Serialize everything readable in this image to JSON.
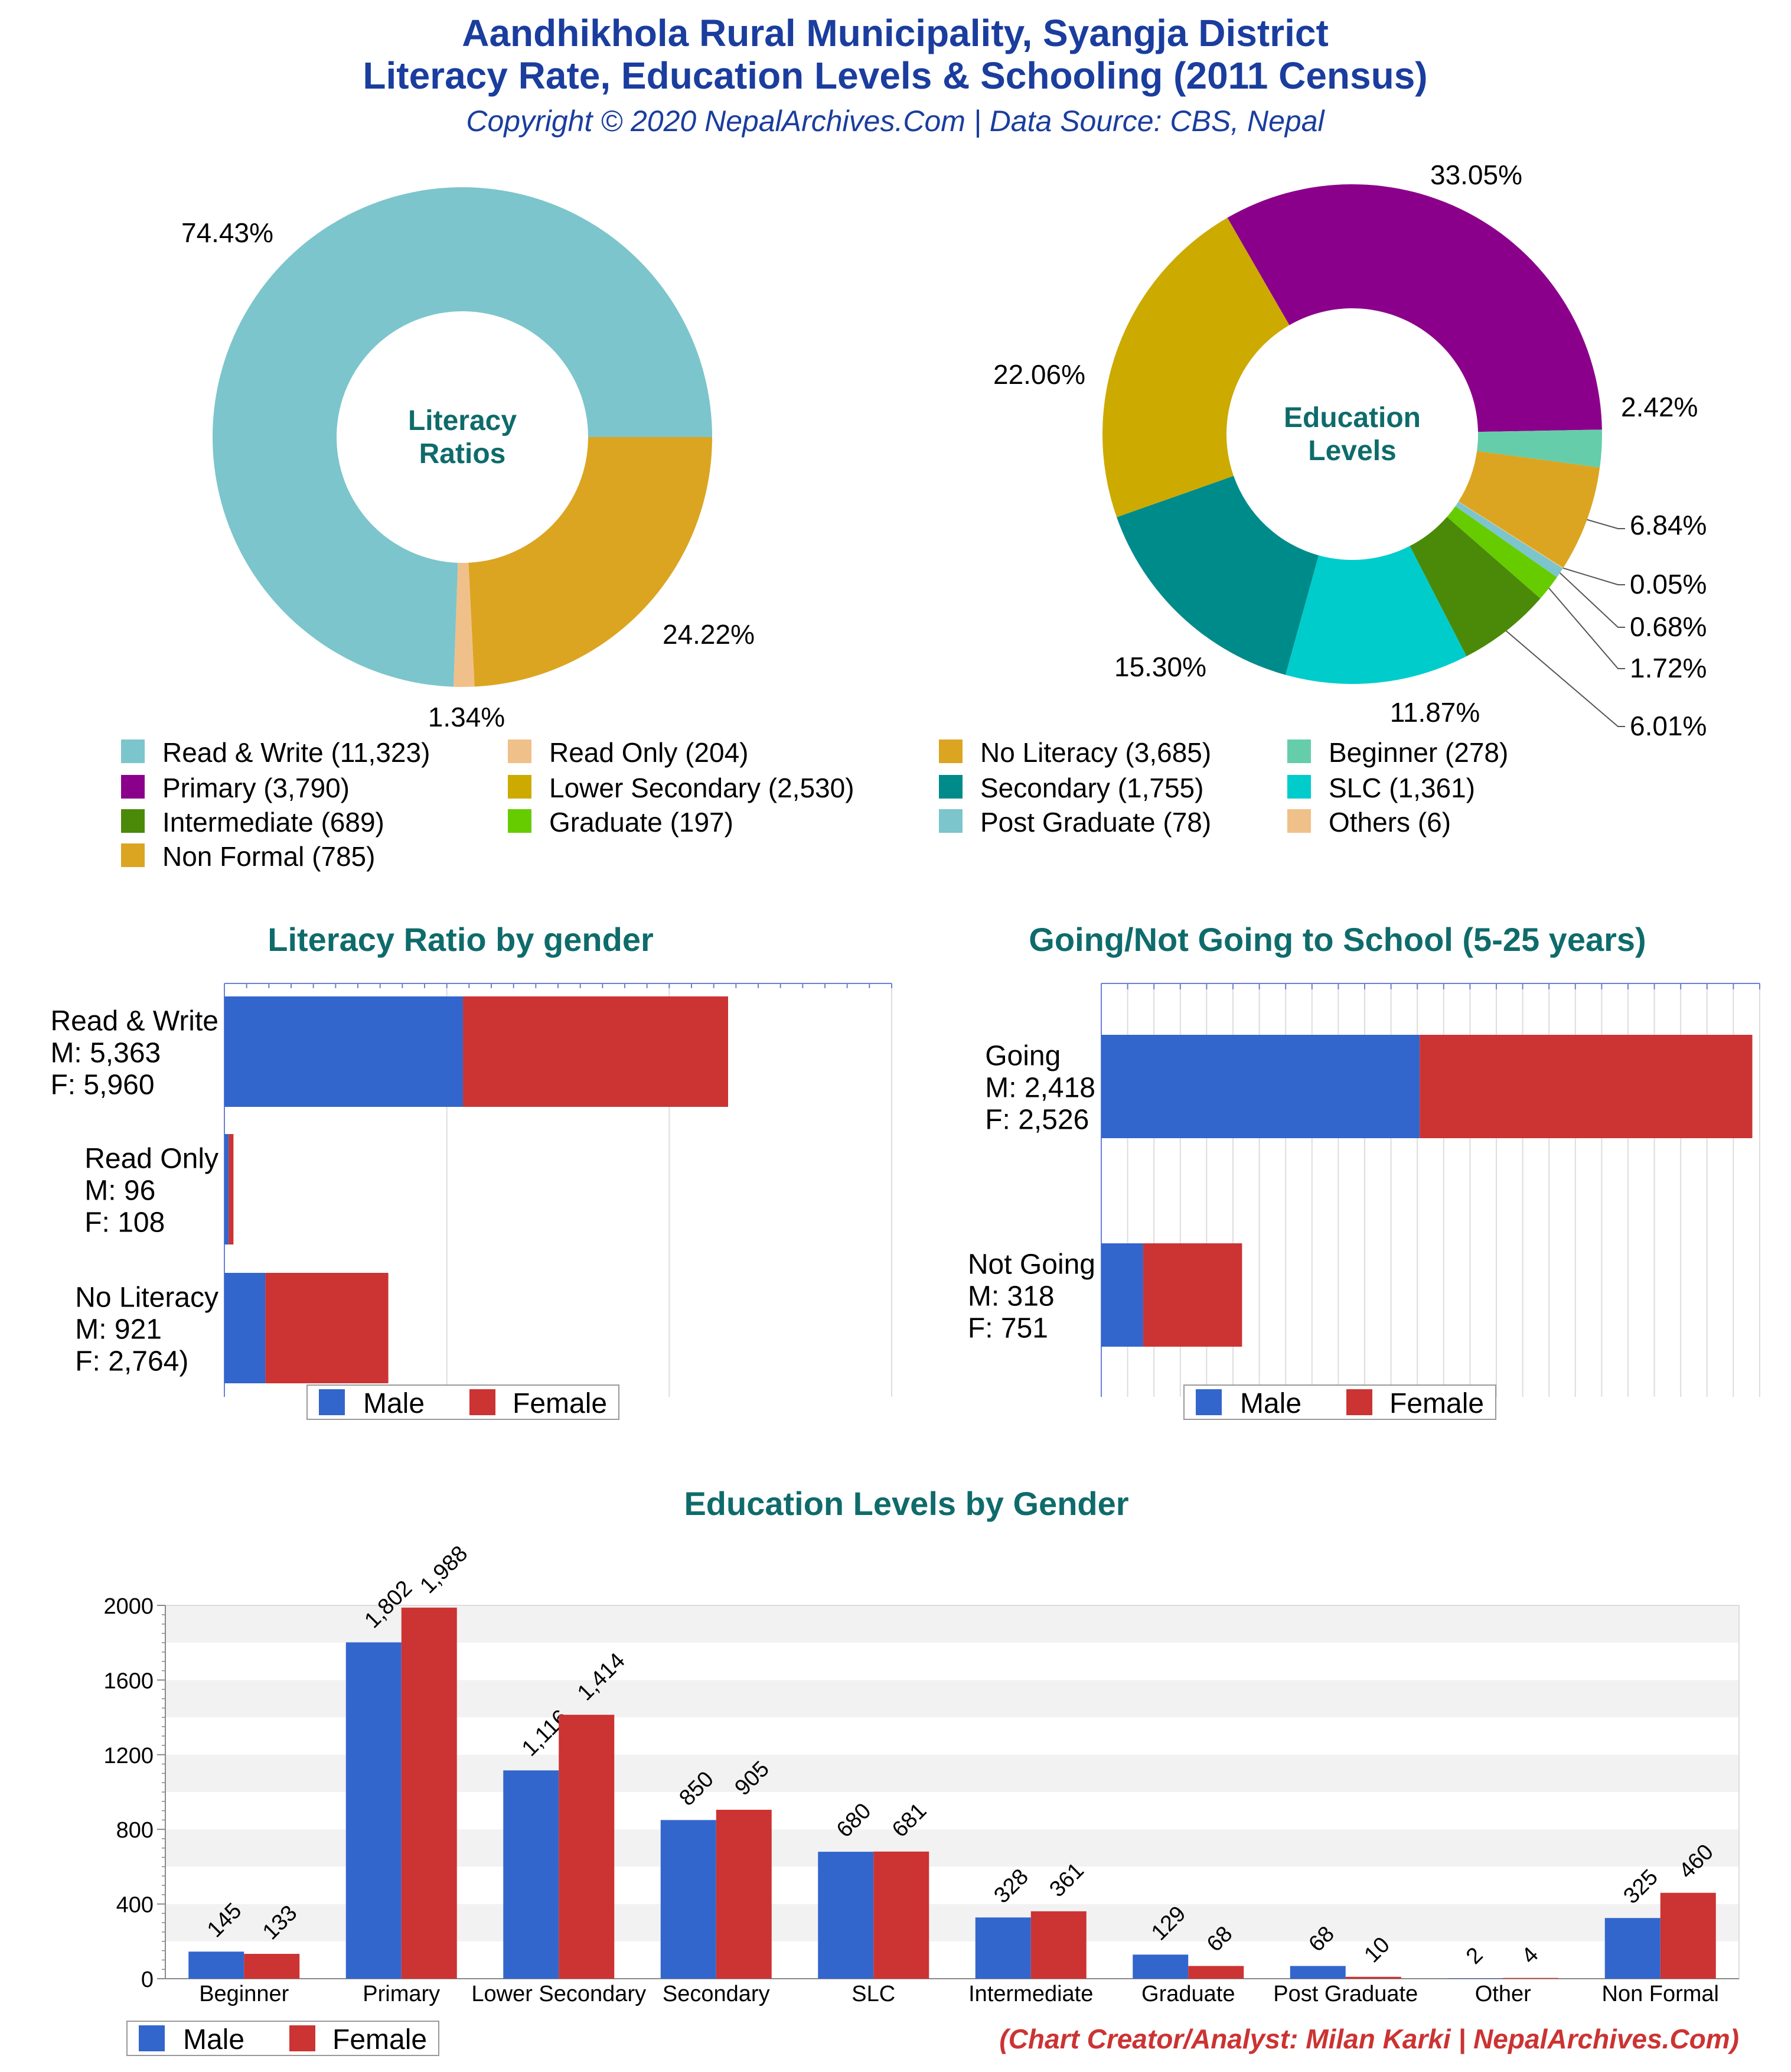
{
  "header": {
    "title_line1": "Aandhikhola Rural Municipality, Syangja District",
    "title_line2": "Literacy Rate, Education Levels & Schooling (2011 Census)",
    "subtitle": "Copyright © 2020 NepalArchives.Com | Data Source: CBS, Nepal"
  },
  "colors": {
    "title": "#1a3d9e",
    "teal_heading": "#0f6b6b",
    "male": "#3366cc",
    "female": "#cc3333",
    "credit": "#cc3333"
  },
  "chart_data": [
    {
      "id": "literacy_donut",
      "type": "pie",
      "center_label": [
        "Literacy",
        "Ratios"
      ],
      "slices": [
        {
          "name": "Read & Write",
          "value": 11323,
          "label": "74.43%",
          "color": "#7cc5cc"
        },
        {
          "name": "Read Only",
          "value": 204,
          "label": "1.34%",
          "color": "#f0c08a"
        },
        {
          "name": "No Literacy",
          "value": 3685,
          "label": "24.22%",
          "color": "#dba521"
        }
      ]
    },
    {
      "id": "education_donut",
      "type": "pie",
      "center_label": [
        "Education",
        "Levels"
      ],
      "slices": [
        {
          "name": "Primary",
          "value": 3790,
          "label": "33.05%",
          "color": "#8b008b"
        },
        {
          "name": "Beginner",
          "value": 278,
          "label": "2.42%",
          "color": "#66cdaa"
        },
        {
          "name": "Non Formal",
          "value": 785,
          "label": "6.84%",
          "color": "#dba521"
        },
        {
          "name": "Others",
          "value": 6,
          "label": "0.05%",
          "color": "#f0c08a"
        },
        {
          "name": "Post Graduate",
          "value": 78,
          "label": "0.68%",
          "color": "#7cc5cc"
        },
        {
          "name": "Graduate",
          "value": 197,
          "label": "1.72%",
          "color": "#66cc00"
        },
        {
          "name": "Intermediate",
          "value": 689,
          "label": "6.01%",
          "color": "#4a8a08"
        },
        {
          "name": "SLC",
          "value": 1361,
          "label": "11.87%",
          "color": "#00cccc"
        },
        {
          "name": "Secondary",
          "value": 1755,
          "label": "15.30%",
          "color": "#008b8b"
        },
        {
          "name": "Lower Secondary",
          "value": 2530,
          "label": "22.06%",
          "color": "#ccaa00"
        }
      ]
    },
    {
      "id": "literacy_gender",
      "type": "bar",
      "title": "Literacy Ratio by gender",
      "orientation": "horizontal-stacked",
      "categories": [
        {
          "label": "Read & Write",
          "m_text": "M: 5,363",
          "f_text": "F: 5,960",
          "male": 5363,
          "female": 5960
        },
        {
          "label": "Read Only",
          "m_text": "M: 96",
          "f_text": "F: 108",
          "male": 96,
          "female": 108
        },
        {
          "label": "No Literacy",
          "m_text": "M: 921",
          "f_text": "F: 2,764)",
          "male": 921,
          "female": 2764
        }
      ],
      "xlim": [
        0,
        15000
      ],
      "legend": [
        "Male",
        "Female"
      ]
    },
    {
      "id": "school_gender",
      "type": "bar",
      "title": "Going/Not Going to School (5-25 years)",
      "orientation": "horizontal-stacked",
      "categories": [
        {
          "label": "Going",
          "m_text": "M: 2,418",
          "f_text": "F: 2,526",
          "male": 2418,
          "female": 2526
        },
        {
          "label": "Not Going",
          "m_text": "M: 318",
          "f_text": "F: 751",
          "male": 318,
          "female": 751
        }
      ],
      "xlim": [
        0,
        5000
      ],
      "legend": [
        "Male",
        "Female"
      ]
    },
    {
      "id": "education_gender",
      "type": "bar",
      "title": "Education Levels by Gender",
      "categories": [
        "Beginner",
        "Primary",
        "Lower Secondary",
        "Secondary",
        "SLC",
        "Intermediate",
        "Graduate",
        "Post Graduate",
        "Other",
        "Non Formal"
      ],
      "series": [
        {
          "name": "Male",
          "values": [
            145,
            1802,
            1116,
            850,
            680,
            328,
            129,
            68,
            2,
            325
          ],
          "labels": [
            "145",
            "1,802",
            "1,116",
            "850",
            "680",
            "328",
            "129",
            "68",
            "2",
            "325"
          ]
        },
        {
          "name": "Female",
          "values": [
            133,
            1988,
            1414,
            905,
            681,
            361,
            68,
            10,
            4,
            460
          ],
          "labels": [
            "133",
            "1,988",
            "1,414",
            "905",
            "681",
            "361",
            "68",
            "10",
            "4",
            "460"
          ]
        }
      ],
      "yticks": [
        "0",
        "400",
        "800",
        "1200",
        "1600",
        "2000"
      ],
      "ylim": [
        0,
        2000
      ],
      "legend": [
        "Male",
        "Female"
      ]
    }
  ],
  "legend_grid": [
    {
      "label": "Read & Write (11,323)",
      "color": "#7cc5cc"
    },
    {
      "label": "Read Only (204)",
      "color": "#f0c08a"
    },
    {
      "label": "No Literacy (3,685)",
      "color": "#dba521"
    },
    {
      "label": "Beginner (278)",
      "color": "#66cdaa"
    },
    {
      "label": "Primary (3,790)",
      "color": "#8b008b"
    },
    {
      "label": "Lower Secondary (2,530)",
      "color": "#ccaa00"
    },
    {
      "label": "Secondary (1,755)",
      "color": "#008b8b"
    },
    {
      "label": "SLC (1,361)",
      "color": "#00cccc"
    },
    {
      "label": "Intermediate (689)",
      "color": "#4a8a08"
    },
    {
      "label": "Graduate (197)",
      "color": "#66cc00"
    },
    {
      "label": "Post Graduate (78)",
      "color": "#7cc5cc"
    },
    {
      "label": "Others (6)",
      "color": "#f0c08a"
    },
    {
      "label": "Non Formal (785)",
      "color": "#dba521"
    }
  ],
  "footer": {
    "credit": "(Chart Creator/Analyst: Milan Karki | NepalArchives.Com)"
  }
}
